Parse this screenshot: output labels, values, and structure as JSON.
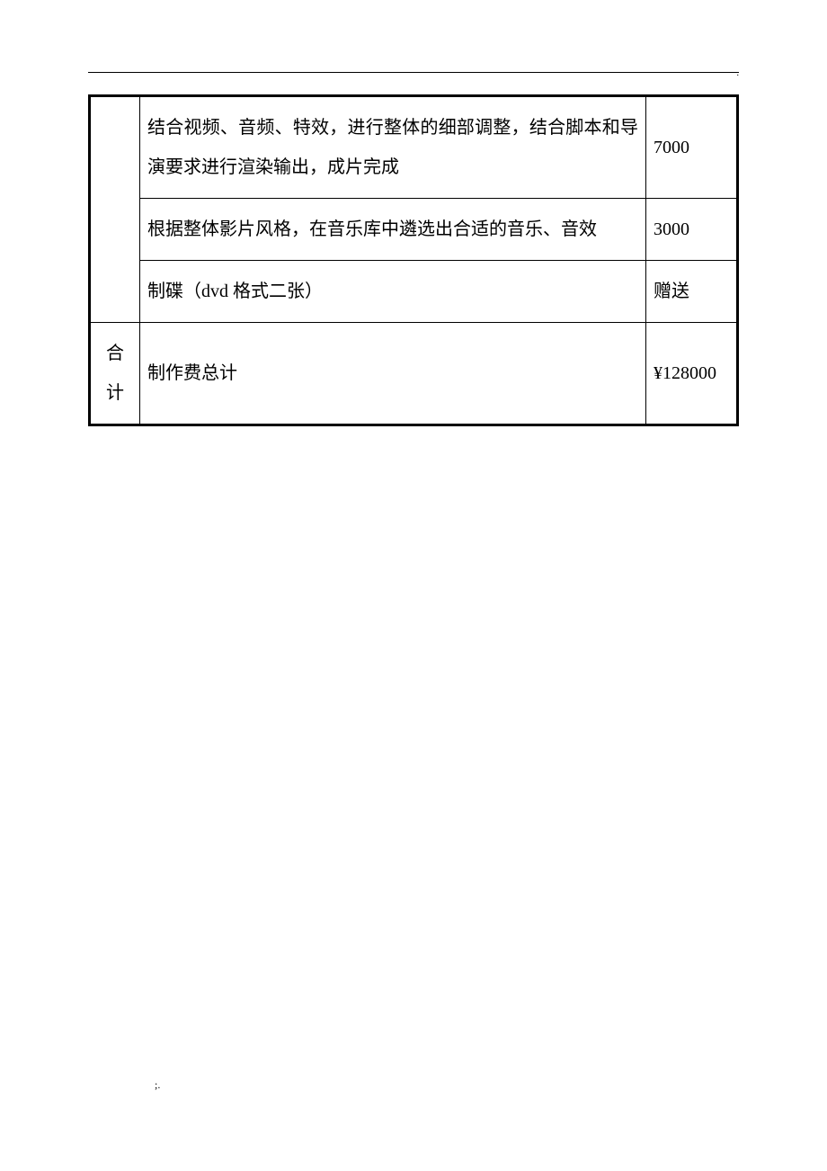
{
  "table": {
    "border_color": "#000000",
    "outer_border_width": 3,
    "inner_border_width": 1,
    "font_size": 20,
    "columns": {
      "category_width": 56,
      "price_width": 102
    },
    "rows": [
      {
        "category": "",
        "description": "结合视频、音频、特效，进行整体的细部调整，结合脚本和导演要求进行渲染输出，成片完成",
        "price": "7000"
      },
      {
        "category": "",
        "description": "根据整体影片风格，在音乐库中遴选出合适的音乐、音效",
        "price": "3000"
      },
      {
        "category": "",
        "description": "制碟（dvd 格式二张）",
        "price": "赠送"
      },
      {
        "category": "合计",
        "description": "制作费总计",
        "price": "¥128000"
      }
    ]
  },
  "markers": {
    "top_dot": ".",
    "footer": ";."
  },
  "page": {
    "background_color": "#ffffff",
    "text_color": "#000000"
  }
}
